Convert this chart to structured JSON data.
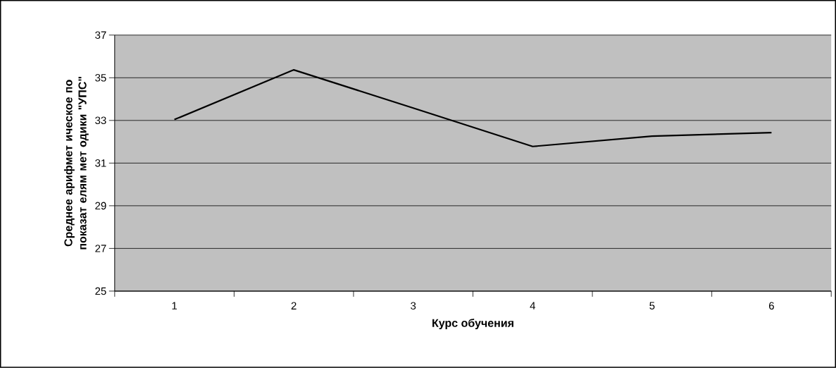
{
  "chart_data": {
    "type": "line",
    "xlabel": "Курс обучения",
    "ylabel": "Среднее арифмет ическое по показат елям мет одики \"УПС\"",
    "categories": [
      "1",
      "2",
      "3",
      "4",
      "5",
      "6"
    ],
    "values": [
      33.04,
      35.37,
      33.58,
      31.78,
      32.26,
      32.43
    ],
    "color": "#000000",
    "ylim": [
      25,
      37
    ],
    "yticks": [
      25,
      27,
      29,
      31,
      33,
      35,
      37
    ],
    "grid": "y",
    "marker": "none",
    "line_style": "solid"
  }
}
